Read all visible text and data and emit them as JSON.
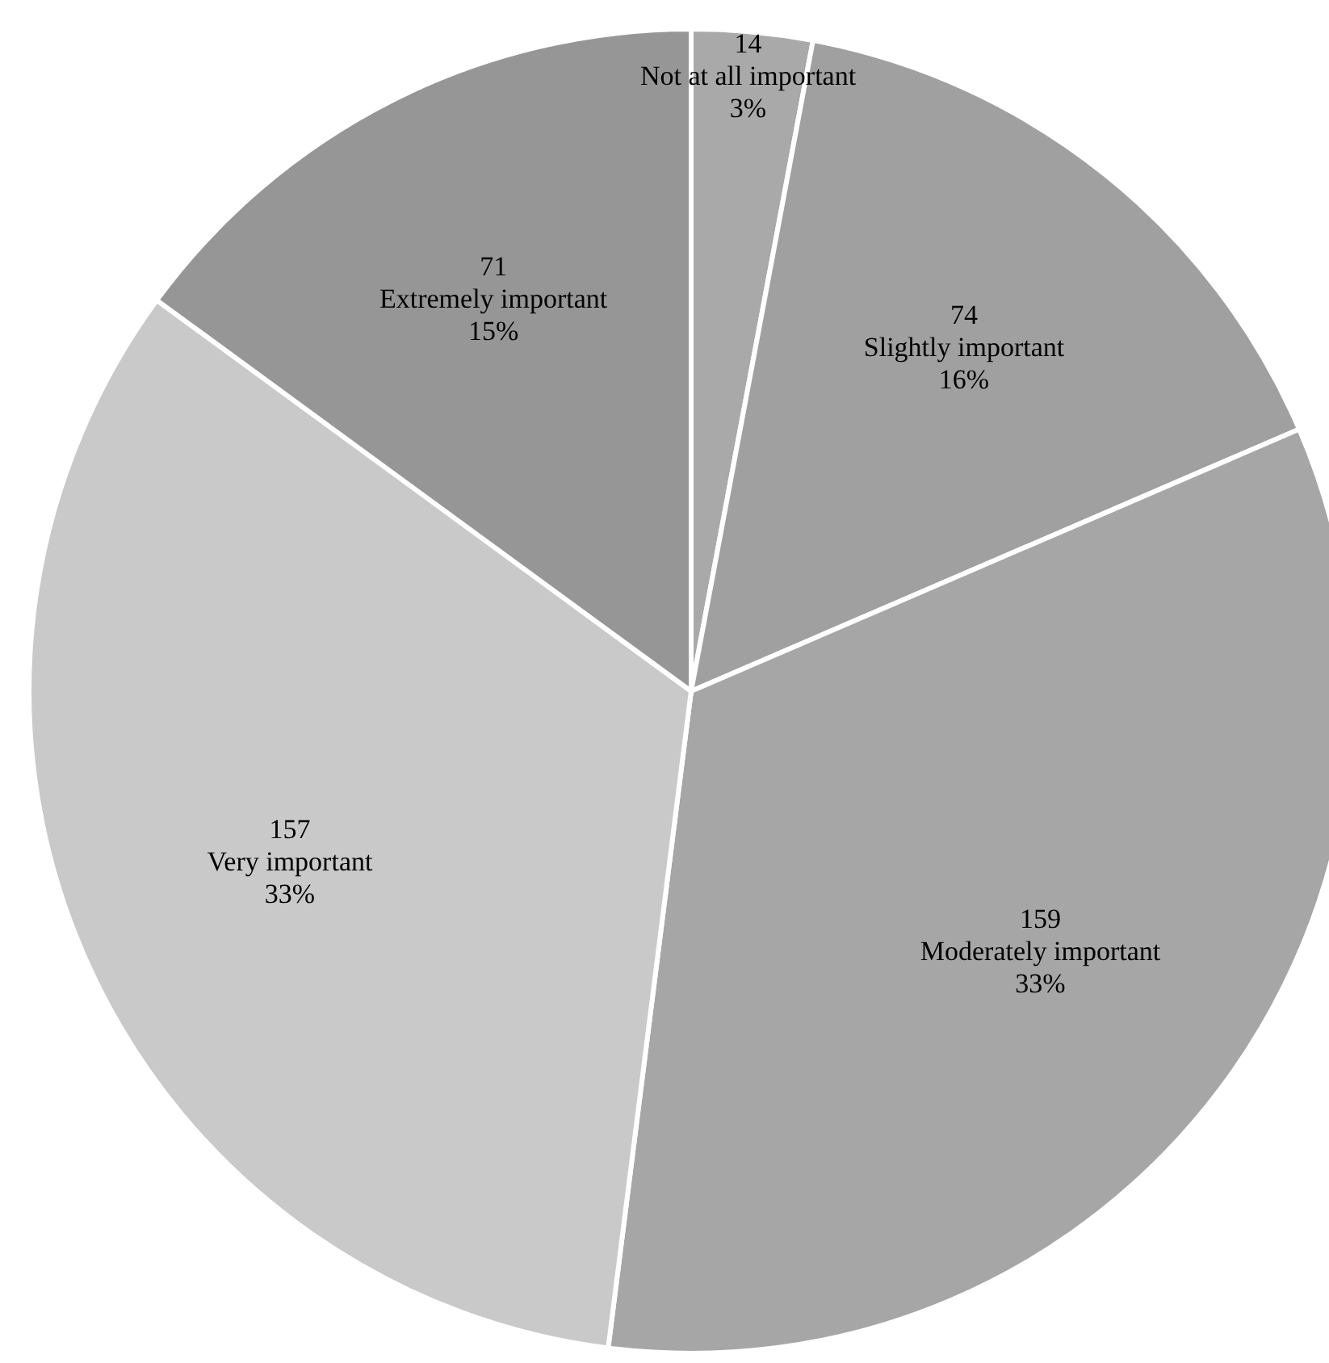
{
  "chart_data": {
    "type": "pie",
    "categories": [
      "Not at all important",
      "Slightly important",
      "Moderately important",
      "Very important",
      "Extremely important"
    ],
    "values": [
      14,
      74,
      159,
      157,
      71
    ],
    "colors": [
      "#a9a9a9",
      "#a0a0a0",
      "#a6a6a6",
      "#c9c9c9",
      "#969696"
    ],
    "data_labels": true,
    "annotations": [
      {
        "text": "3%",
        "x": "Not at all important"
      },
      {
        "text": "16%",
        "x": "Slightly important"
      },
      {
        "text": "33%",
        "x": "Moderately important"
      },
      {
        "text": "33%",
        "x": "Very important"
      },
      {
        "text": "15%",
        "x": "Extremely important"
      }
    ]
  }
}
